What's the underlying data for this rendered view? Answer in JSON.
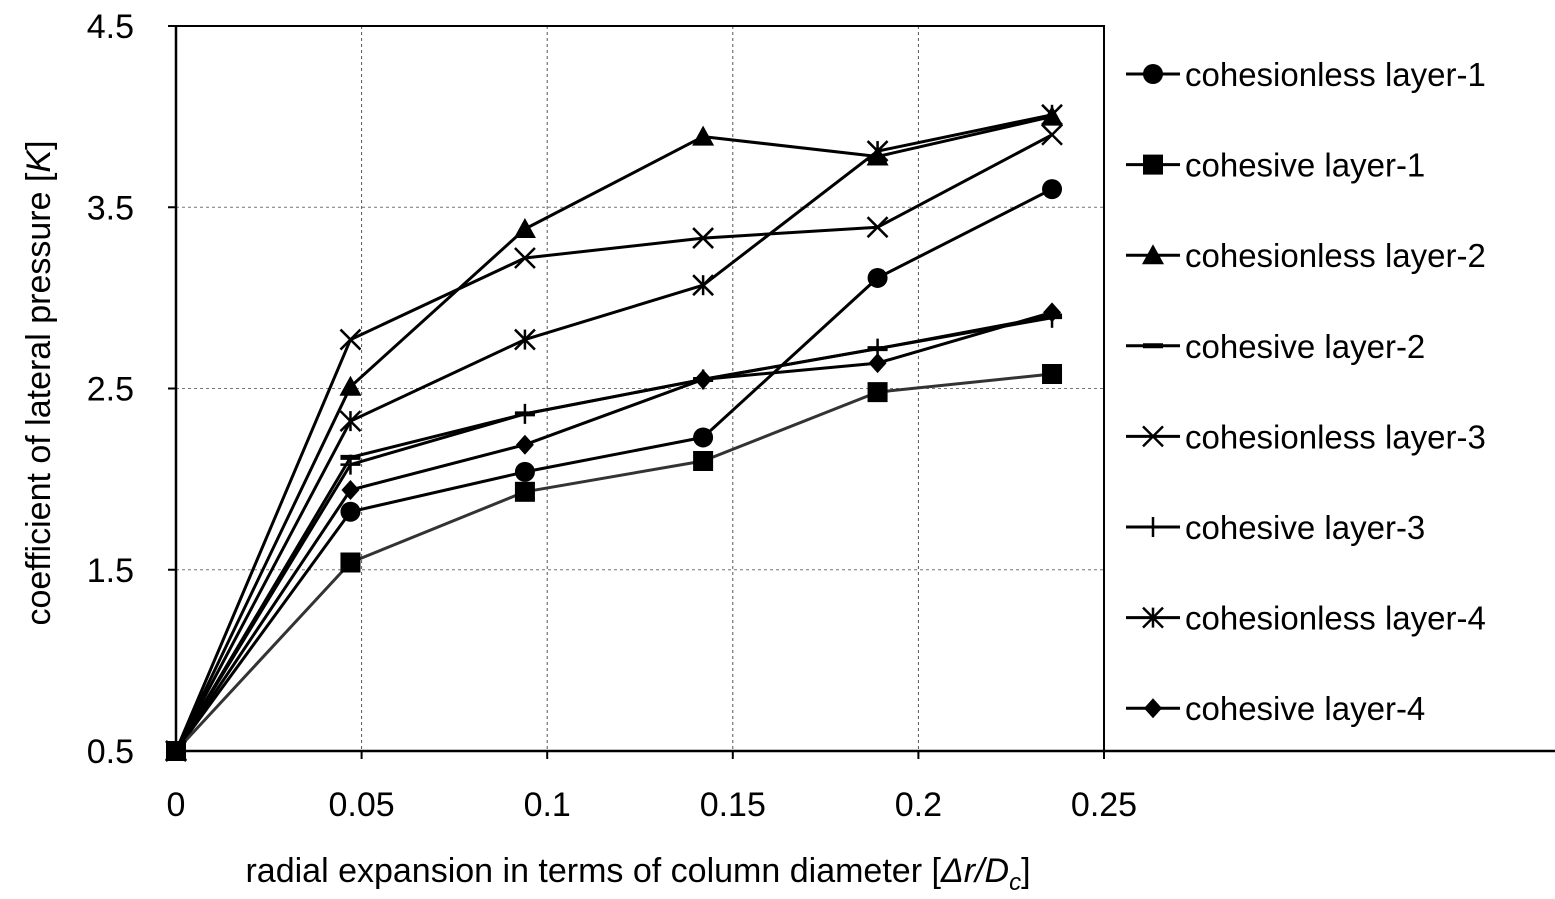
{
  "chart_data": {
    "type": "line",
    "title": "",
    "xlabel": "radial expansion in terms of column diameter [",
    "xlabel_italic": "Δr/D",
    "xlabel_subscript": "c",
    "xlabel_end": "]",
    "ylabel": "coefficient of lateral pressure [",
    "ylabel_italic": "K",
    "ylabel_end": "]",
    "xlim": [
      0,
      0.25
    ],
    "ylim": [
      0.5,
      4.5
    ],
    "x_ticks": [
      0,
      0.05,
      0.1,
      0.15,
      0.2,
      0.25
    ],
    "x_tick_labels": [
      "0",
      "0.05",
      "0.1",
      "0.15",
      "0.2",
      "0.25"
    ],
    "y_ticks": [
      0.5,
      1.5,
      2.5,
      3.5,
      4.5
    ],
    "y_tick_labels": [
      "0.5",
      "1.5",
      "2.5",
      "3.5",
      "4.5"
    ],
    "grid": true,
    "legend_position": "right",
    "x": [
      0,
      0.047,
      0.094,
      0.142,
      0.189,
      0.236
    ],
    "series": [
      {
        "name": "cohesionless layer-1",
        "marker": "circle",
        "values": [
          0.5,
          1.82,
          2.04,
          2.23,
          3.11,
          3.6
        ]
      },
      {
        "name": "cohesive layer-1",
        "marker": "square",
        "values": [
          0.5,
          1.54,
          1.93,
          2.1,
          2.48,
          2.58
        ]
      },
      {
        "name": "cohesionless layer-2",
        "marker": "triangle",
        "values": [
          0.5,
          2.51,
          3.38,
          3.89,
          3.78,
          4.0
        ]
      },
      {
        "name": "cohesive layer-2",
        "marker": "dash",
        "values": [
          0.5,
          2.12,
          2.36,
          2.55,
          2.72,
          2.9
        ]
      },
      {
        "name": "cohesionless layer-3",
        "marker": "x",
        "values": [
          0.5,
          2.77,
          3.22,
          3.33,
          3.39,
          3.9
        ]
      },
      {
        "name": "cohesive layer-3",
        "marker": "plus",
        "values": [
          0.5,
          2.08,
          2.36,
          2.55,
          2.72,
          2.89
        ]
      },
      {
        "name": "cohesionless layer-4",
        "marker": "asterisk",
        "values": [
          0.5,
          2.32,
          2.77,
          3.07,
          3.81,
          4.01
        ]
      },
      {
        "name": "cohesive layer-4",
        "marker": "diamond",
        "values": [
          0.5,
          1.94,
          2.19,
          2.55,
          2.64,
          2.92
        ]
      }
    ]
  }
}
